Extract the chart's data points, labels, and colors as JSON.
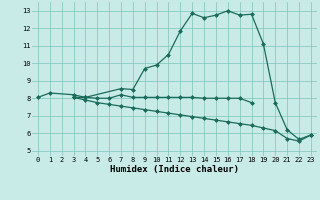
{
  "title": "",
  "xlabel": "Humidex (Indice chaleur)",
  "bg_color": "#c8ebe8",
  "grid_color": "#7dc4b8",
  "line_color": "#1a6b5a",
  "xlim": [
    -0.5,
    23.5
  ],
  "ylim": [
    4.7,
    13.5
  ],
  "yticks": [
    5,
    6,
    7,
    8,
    9,
    10,
    11,
    12,
    13
  ],
  "xticks": [
    0,
    1,
    2,
    3,
    4,
    5,
    6,
    7,
    8,
    9,
    10,
    11,
    12,
    13,
    14,
    15,
    16,
    17,
    18,
    19,
    20,
    21,
    22,
    23
  ],
  "curve1_x": [
    0,
    1,
    3,
    4,
    7,
    8,
    9,
    10,
    11,
    12,
    13,
    14,
    15,
    16,
    17,
    18,
    19,
    20,
    21,
    22,
    23
  ],
  "curve1_y": [
    8.05,
    8.3,
    8.2,
    8.05,
    8.55,
    8.5,
    9.7,
    9.9,
    10.5,
    11.85,
    12.85,
    12.6,
    12.75,
    13.0,
    12.75,
    12.8,
    11.1,
    7.75,
    6.2,
    5.65,
    5.9
  ],
  "curve2_x": [
    3,
    4,
    5,
    6,
    7,
    8,
    9,
    10,
    11,
    12,
    13,
    14,
    15,
    16,
    17,
    18
  ],
  "curve2_y": [
    8.05,
    8.05,
    8.0,
    8.0,
    8.2,
    8.05,
    8.05,
    8.05,
    8.05,
    8.05,
    8.05,
    8.0,
    8.0,
    8.0,
    8.0,
    7.75
  ],
  "curve3_x": [
    3,
    4,
    5,
    6,
    7,
    8,
    9,
    10,
    11,
    12,
    13,
    14,
    15,
    16,
    17,
    18,
    19,
    20,
    21,
    22,
    23
  ],
  "curve3_y": [
    8.05,
    7.9,
    7.75,
    7.65,
    7.55,
    7.45,
    7.35,
    7.25,
    7.15,
    7.05,
    6.95,
    6.85,
    6.75,
    6.65,
    6.55,
    6.45,
    6.3,
    6.15,
    5.7,
    5.55,
    5.9
  ],
  "marker_size": 2.5,
  "linewidth": 0.9,
  "xlabel_fontsize": 6.5,
  "tick_fontsize": 5.0
}
